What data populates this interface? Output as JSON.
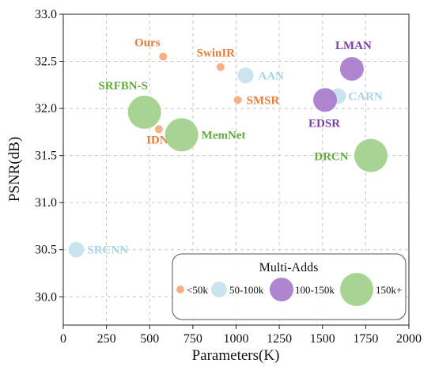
{
  "chart_data": {
    "type": "scatter",
    "xlabel": "Parameters(K)",
    "ylabel": "PSNR(dB)",
    "xlim": [
      0,
      2000
    ],
    "ylim": [
      29.7,
      33.0
    ],
    "xticks": [
      "0",
      "250",
      "500",
      "750",
      "1000",
      "1250",
      "1500",
      "1750",
      "2000"
    ],
    "yticks": [
      "30.0",
      "30.5",
      "31.0",
      "31.5",
      "32.0",
      "32.5",
      "33.0"
    ],
    "grid": true,
    "colors": {
      "<50k": "#F4A97A",
      "50-100k": "#C5E3EE",
      "100-150k": "#A87BCC",
      "150k+": "#9FD08A"
    },
    "label_colors": {
      "<50k": "#E57E3A",
      "50-100k": "#A8D3E3",
      "100-150k": "#7B3FA6",
      "150k+": "#5FAE3E"
    },
    "points": [
      {
        "name": "Ours",
        "x": 578,
        "y": 32.55,
        "multi_adds": "<50k"
      },
      {
        "name": "SwinIR",
        "x": 910,
        "y": 32.44,
        "multi_adds": "<50k"
      },
      {
        "name": "AAN",
        "x": 1055,
        "y": 32.35,
        "multi_adds": "50-100k"
      },
      {
        "name": "SMSR",
        "x": 1010,
        "y": 32.09,
        "multi_adds": "<50k"
      },
      {
        "name": "LMAN",
        "x": 1670,
        "y": 32.42,
        "multi_adds": "100-150k"
      },
      {
        "name": "CARN",
        "x": 1590,
        "y": 32.13,
        "multi_adds": "50-100k"
      },
      {
        "name": "EDSR",
        "x": 1515,
        "y": 32.09,
        "multi_adds": "100-150k"
      },
      {
        "name": "SRFBN-S",
        "x": 470,
        "y": 31.96,
        "multi_adds": "150k+"
      },
      {
        "name": "IDN",
        "x": 553,
        "y": 31.78,
        "multi_adds": "<50k"
      },
      {
        "name": "MemNet",
        "x": 685,
        "y": 31.72,
        "multi_adds": "150k+"
      },
      {
        "name": "DRCN",
        "x": 1780,
        "y": 31.5,
        "multi_adds": "150k+"
      },
      {
        "name": "SRCNN",
        "x": 75,
        "y": 30.5,
        "multi_adds": "50-100k"
      }
    ],
    "legend": {
      "title": "Multi-Adds",
      "placement": "bottom-right",
      "entries": [
        "<50k",
        "50-100k",
        "100-150k",
        "150k+"
      ]
    }
  }
}
